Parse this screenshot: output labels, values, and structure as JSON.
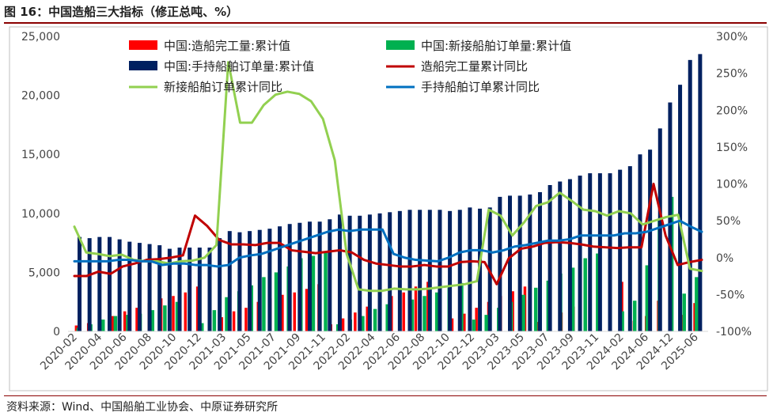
{
  "title": "图 16：中国造船三大指标（修正总吨、%）",
  "source": "资料来源：Wind、中国船舶工业协会、中原证券研究所",
  "colors": {
    "completed": "#ff0000",
    "new_orders": "#00b050",
    "backlog": "#002060",
    "completed_yoy": "#c00000",
    "new_orders_yoy": "#92d050",
    "backlog_yoy": "#0070c0",
    "axis": "#444444",
    "frame": "#bfbfbf"
  },
  "chart_data": {
    "type": "bar+line",
    "x_tick_labels": [
      "2020-02",
      "2020-04",
      "2020-06",
      "2020-08",
      "2020-10",
      "2020-12",
      "2021-03",
      "2021-05",
      "2021-07",
      "2021-09",
      "2021-11",
      "2022-02",
      "2022-04",
      "2022-06",
      "2022-08",
      "2022-10",
      "2022-12",
      "2023-03",
      "2023-05",
      "2023-07",
      "2023-09",
      "2023-11",
      "2024-02",
      "2024-06",
      "2024-12",
      "2025-06"
    ],
    "left_axis": {
      "min": 0,
      "max": 25000,
      "ticks": [
        "0",
        "5,000",
        "10,000",
        "15,000",
        "20,000",
        "25,000"
      ]
    },
    "right_axis": {
      "min": -100,
      "max": 300,
      "ticks": [
        "-100%",
        "-50%",
        "0%",
        "50%",
        "100%",
        "150%",
        "200%",
        "250%",
        "300%"
      ]
    },
    "series": [
      {
        "name": "中国:造船完工量:累计值",
        "type": "bar",
        "axis": "left",
        "values": [
          500,
          700,
          1000,
          1300,
          1700,
          2000,
          2400,
          2800,
          3000,
          3300,
          3800,
          800,
          1200,
          1700,
          2000,
          2500,
          2800,
          3100,
          3300,
          3600,
          4000,
          600,
          1100,
          1600,
          2100,
          2600,
          3000,
          3300,
          3800,
          4200,
          700,
          1100,
          1500,
          2000,
          2500,
          3000,
          3400,
          3800,
          800,
          1300,
          1600,
          2100,
          2700,
          3100,
          3500,
          4200,
          900,
          1300,
          2600,
          4800,
          1400,
          2400
        ]
      },
      {
        "name": "中国:新接船舶订单量:累计值",
        "type": "bar",
        "axis": "left",
        "values": [
          300,
          600,
          1000,
          1300,
          1400,
          1500,
          1800,
          2200,
          2500,
          3000,
          700,
          1800,
          2900,
          3400,
          3900,
          4600,
          5000,
          5500,
          6200,
          6400,
          6800,
          600,
          1000,
          1300,
          1900,
          2300,
          2500,
          2700,
          3000,
          3300,
          3700,
          4100,
          1000,
          1400,
          2000,
          2500,
          3100,
          3700,
          4300,
          4900,
          5400,
          6200,
          6600,
          7000,
          1700,
          2600,
          5600,
          9500,
          11400,
          3200,
          4600
        ]
      },
      {
        "name": "中国:手持船舶订单量:累计值",
        "type": "bar",
        "axis": "left",
        "values": [
          8000,
          7900,
          8000,
          8000,
          7800,
          7600,
          7500,
          7400,
          7300,
          7000,
          7100,
          7100,
          7100,
          7100,
          7900,
          8500,
          8400,
          8500,
          8600,
          8700,
          8900,
          9100,
          9200,
          9300,
          9300,
          9500,
          9900,
          9800,
          9800,
          9900,
          10000,
          10100,
          10200,
          10300,
          10300,
          10300,
          10300,
          10200,
          10300,
          10500,
          10400,
          10500,
          11400,
          11500,
          11500,
          11600,
          11800,
          12400,
          12700,
          12900,
          13200,
          13400,
          13400,
          13400,
          13700,
          14000,
          15000,
          15400,
          17200,
          19400,
          20900,
          23000,
          23500
        ]
      },
      {
        "name": "造船完工量累计同比",
        "type": "line",
        "axis": "right",
        "values": [
          -25,
          -25,
          -19,
          -22,
          -12,
          -8,
          -3,
          -2,
          0,
          3,
          57,
          43,
          24,
          18,
          18,
          17,
          20,
          20,
          10,
          8,
          6,
          8,
          10,
          7,
          -3,
          -8,
          -10,
          -12,
          -12,
          -10,
          -12,
          -12,
          -6,
          -5,
          -6,
          -36,
          -1,
          12,
          15,
          20,
          21,
          20,
          18,
          15,
          14,
          13,
          14,
          14,
          100,
          30,
          -10,
          -6,
          -3
        ]
      },
      {
        "name": "新接船舶订单累计同比",
        "type": "line",
        "axis": "right",
        "values": [
          42,
          7,
          5,
          2,
          4,
          -3,
          -5,
          -5,
          -8,
          -5,
          -4,
          0,
          17,
          265,
          183,
          183,
          207,
          221,
          225,
          222,
          212,
          188,
          132,
          5,
          -43,
          -45,
          -45,
          -42,
          -43,
          -43,
          -42,
          -40,
          -38,
          -36,
          -32,
          65,
          57,
          30,
          48,
          70,
          75,
          88,
          77,
          65,
          63,
          57,
          63,
          60,
          45,
          50,
          55,
          58,
          -15,
          -18
        ]
      },
      {
        "name": "手持船舶订单累计同比",
        "type": "line",
        "axis": "right",
        "values": [
          -5,
          -5,
          -5,
          -5,
          -3,
          -3,
          -5,
          -5,
          -10,
          -8,
          -8,
          -10,
          -10,
          -12,
          -10,
          0,
          3,
          5,
          10,
          15,
          20,
          25,
          30,
          35,
          38,
          36,
          38,
          38,
          38,
          5,
          0,
          -3,
          -4,
          -5,
          0,
          7,
          10,
          10,
          7,
          10,
          15,
          17,
          20,
          23,
          23,
          25,
          30,
          30,
          30,
          30,
          33,
          33,
          35,
          40,
          45,
          50,
          42,
          35
        ]
      }
    ]
  }
}
